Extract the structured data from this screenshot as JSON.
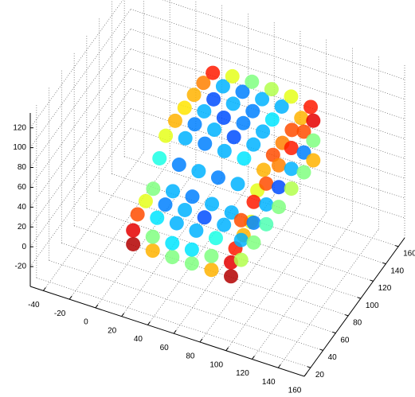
{
  "chart_data": {
    "type": "scatter3d",
    "colormap": "jet",
    "grid": true,
    "xlim": [
      -50,
      160
    ],
    "ylim": [
      10,
      170
    ],
    "zlim": [
      -40,
      135
    ],
    "xticks": [
      -40,
      -20,
      0,
      20,
      40,
      60,
      80,
      100,
      120,
      140,
      160
    ],
    "yticks": [
      20,
      40,
      60,
      80,
      100,
      120,
      140,
      160
    ],
    "zticks": [
      -20,
      0,
      20,
      40,
      60,
      80,
      100,
      120
    ],
    "x": [
      25,
      40,
      55,
      70,
      85,
      100,
      25,
      40,
      55,
      70,
      85,
      100,
      25,
      40,
      55,
      70,
      85,
      100,
      25,
      40,
      55,
      70,
      85,
      100,
      25,
      40,
      55,
      70,
      85,
      100,
      25,
      40,
      55,
      70,
      85,
      100,
      25,
      40,
      55,
      70,
      85,
      100,
      25,
      40,
      55,
      70,
      85,
      100,
      25,
      40,
      55,
      70,
      85,
      100,
      25,
      40,
      55,
      70,
      85,
      100,
      25,
      40,
      55,
      70,
      85,
      100,
      25,
      40,
      55,
      70,
      85,
      100,
      102,
      102,
      102,
      102,
      102,
      102,
      102,
      102,
      102,
      102,
      102,
      102,
      102,
      102,
      102,
      102,
      102,
      102,
      102,
      102,
      102
    ],
    "y": [
      70,
      70,
      70,
      70,
      70,
      70,
      85,
      85,
      85,
      85,
      85,
      85,
      100,
      100,
      100,
      100,
      100,
      100,
      115,
      115,
      115,
      115,
      115,
      115,
      130,
      130,
      130,
      130,
      130,
      130,
      145,
      145,
      145,
      145,
      145,
      145,
      60,
      60,
      60,
      60,
      60,
      60,
      25,
      25,
      25,
      25,
      25,
      25,
      38,
      38,
      38,
      38,
      38,
      38,
      50,
      50,
      50,
      50,
      50,
      50,
      18,
      18,
      18,
      18,
      18,
      18,
      18,
      18,
      18,
      18,
      18,
      18,
      30,
      30,
      30,
      50,
      50,
      50,
      70,
      70,
      70,
      90,
      90,
      90,
      110,
      110,
      110,
      130,
      130,
      130,
      145,
      145,
      145
    ],
    "z": [
      92,
      96,
      97,
      96,
      95,
      90,
      94,
      97,
      98,
      97,
      96,
      92,
      94,
      97,
      97,
      98,
      96,
      91,
      94,
      96,
      98,
      97,
      95,
      91,
      93,
      96,
      97,
      96,
      95,
      90,
      90,
      93,
      94,
      93,
      92,
      88,
      78,
      78,
      78,
      78,
      78,
      78,
      52,
      55,
      56,
      55,
      54,
      50,
      54,
      57,
      58,
      57,
      56,
      52,
      56,
      60,
      61,
      60,
      58,
      55,
      28,
      28,
      28,
      28,
      28,
      28,
      42,
      42,
      42,
      42,
      42,
      42,
      35,
      55,
      75,
      35,
      55,
      76,
      36,
      56,
      77,
      36,
      56,
      78,
      37,
      57,
      78,
      36,
      56,
      77,
      35,
      55,
      75
    ],
    "c": [
      0.6,
      0.3,
      0.25,
      0.3,
      0.35,
      0.7,
      0.7,
      0.25,
      0.3,
      0.2,
      0.3,
      0.8,
      0.65,
      0.3,
      0.2,
      0.25,
      0.3,
      0.75,
      0.7,
      0.2,
      0.3,
      0.25,
      0.35,
      0.8,
      0.75,
      0.3,
      0.25,
      0.3,
      0.3,
      0.7,
      0.85,
      0.6,
      0.5,
      0.55,
      0.6,
      0.85,
      0.4,
      0.25,
      0.3,
      0.25,
      0.3,
      0.6,
      0.8,
      0.35,
      0.3,
      0.3,
      0.4,
      0.85,
      0.6,
      0.25,
      0.3,
      0.2,
      0.3,
      0.7,
      0.5,
      0.3,
      0.25,
      0.3,
      0.3,
      0.6,
      0.95,
      0.7,
      0.5,
      0.5,
      0.7,
      0.95,
      0.9,
      0.5,
      0.35,
      0.35,
      0.5,
      0.9,
      0.55,
      0.3,
      0.8,
      0.5,
      0.25,
      0.85,
      0.45,
      0.3,
      0.8,
      0.5,
      0.2,
      0.75,
      0.55,
      0.3,
      0.85,
      0.5,
      0.25,
      0.8,
      0.7,
      0.5,
      0.9
    ]
  }
}
